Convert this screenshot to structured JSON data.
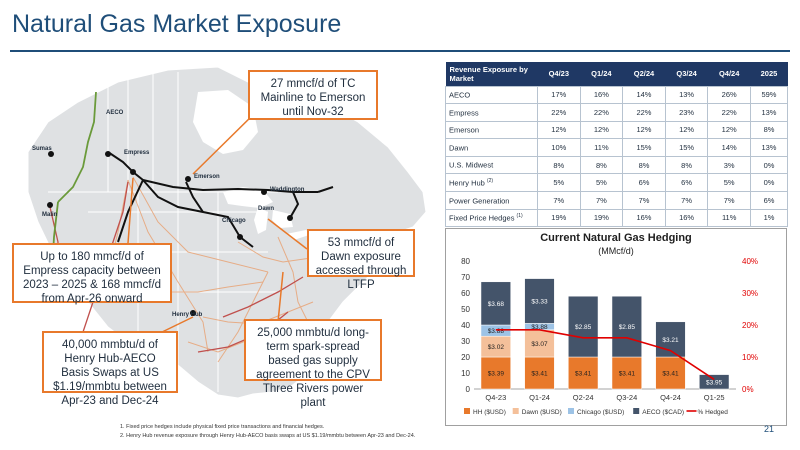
{
  "page": {
    "title": "Natural Gas Market Exposure",
    "page_number": "21",
    "footnotes": [
      "1.      Fixed price hedges include physical fixed price transactions and financial hedges.",
      "2.      Henry Hub revenue exposure through Henry Hub-AECO basis swaps at US $1.19/mmbtu between Apr-23 and Dec-24."
    ]
  },
  "map": {
    "labels": {
      "aeco": "AECO",
      "sumas": "Sumas",
      "empress": "Empress",
      "malin": "Malin",
      "emerson": "Emerson",
      "waddington": "Waddington",
      "dawn": "Dawn",
      "chicago": "Chicago",
      "henry_hub": "Henry Hub"
    },
    "callouts": {
      "tc_mainline": "27 mmcf/d of TC Mainline to Emerson until Nov-32",
      "empress_capacity": "Up to 180 mmcf/d of Empress capacity between 2023 – 2025 & 168 mmcf/d from Apr-26 onward",
      "dawn_exposure": "53 mmcf/d of Dawn exposure accessed through LTFP",
      "henry_hub_swaps": "40,000 mmbtu/d of Henry Hub-AECO Basis Swaps at US $1.19/mmbtu between Apr-23 and Dec-24",
      "cpv_supply": "25,000 mmbtu/d long-term spark-spread based gas supply agreement to the CPV Three Rivers power plant"
    },
    "colors": {
      "pipeline_black": "#111111",
      "pipeline_green": "#6a9a3a",
      "pipeline_red": "#c0504d",
      "pipeline_orange": "#e8a070",
      "callout_border": "#e8792b"
    }
  },
  "revenue_table": {
    "header": {
      "market": "Revenue Exposure by Market",
      "columns": [
        "Q4/23",
        "Q1/24",
        "Q2/24",
        "Q3/24",
        "Q4/24",
        "2025"
      ]
    },
    "rows": [
      {
        "market": "AECO",
        "sup": "",
        "values": [
          "17%",
          "16%",
          "14%",
          "13%",
          "26%",
          "59%"
        ]
      },
      {
        "market": "Empress",
        "sup": "",
        "values": [
          "22%",
          "22%",
          "22%",
          "23%",
          "22%",
          "13%"
        ]
      },
      {
        "market": "Emerson",
        "sup": "",
        "values": [
          "12%",
          "12%",
          "12%",
          "12%",
          "12%",
          "8%"
        ]
      },
      {
        "market": "Dawn",
        "sup": "",
        "values": [
          "10%",
          "11%",
          "15%",
          "15%",
          "14%",
          "13%"
        ]
      },
      {
        "market": "U.S. Midwest",
        "sup": "",
        "values": [
          "8%",
          "8%",
          "8%",
          "8%",
          "3%",
          "0%"
        ]
      },
      {
        "market": "Henry Hub",
        "sup": "(2)",
        "values": [
          "5%",
          "5%",
          "6%",
          "6%",
          "5%",
          "0%"
        ]
      },
      {
        "market": "Power Generation",
        "sup": "",
        "values": [
          "7%",
          "7%",
          "7%",
          "7%",
          "7%",
          "6%"
        ]
      },
      {
        "market": "Fixed Price Hedges",
        "sup": "(1)",
        "values": [
          "19%",
          "19%",
          "16%",
          "16%",
          "11%",
          "1%"
        ]
      }
    ]
  },
  "chart_data": {
    "type": "bar",
    "stacked": true,
    "title": "Current Natural Gas Hedging",
    "subtitle": "(MMcf/d)",
    "categories": [
      "Q4-23",
      "Q1-24",
      "Q2-24",
      "Q3-24",
      "Q4-24",
      "Q1-25"
    ],
    "ylim": [
      0,
      80
    ],
    "y_ticks": [
      "0",
      "10",
      "20",
      "30",
      "40",
      "50",
      "60",
      "70",
      "80"
    ],
    "y2lim": [
      0,
      40
    ],
    "y2_ticks": [
      "0%",
      "10%",
      "20%",
      "30%",
      "40%"
    ],
    "series": [
      {
        "name": "HH ($USD)",
        "color": "#e8792b",
        "values": [
          20,
          20,
          20,
          20,
          20,
          0
        ],
        "labels": [
          "$3.39",
          "$3.41",
          "$3.41",
          "$3.41",
          "$3.41",
          ""
        ]
      },
      {
        "name": "Dawn ($USD)",
        "color": "#f4c09a",
        "values": [
          13,
          17,
          0,
          0,
          0,
          0
        ],
        "labels": [
          "$3.02",
          "$3.07",
          "",
          "",
          "",
          ""
        ]
      },
      {
        "name": "Chicago ($USD)",
        "color": "#9dc3e6",
        "values": [
          7,
          4,
          0,
          0,
          0,
          0
        ],
        "labels": [
          "$3.88",
          "$3.88",
          "",
          "",
          "",
          ""
        ]
      },
      {
        "name": "AECO ($CAD)",
        "color": "#44546a",
        "values": [
          27,
          28,
          38,
          38,
          22,
          9
        ],
        "labels": [
          "$3.68",
          "$3.33",
          "$2.85",
          "$2.85",
          "$3.21",
          "$3.95"
        ]
      }
    ],
    "line": {
      "name": "% Hedged",
      "color": "#e00000",
      "axis": "right",
      "values": [
        18.5,
        18.5,
        16,
        16,
        12,
        3
      ]
    },
    "legend": "bottom"
  }
}
